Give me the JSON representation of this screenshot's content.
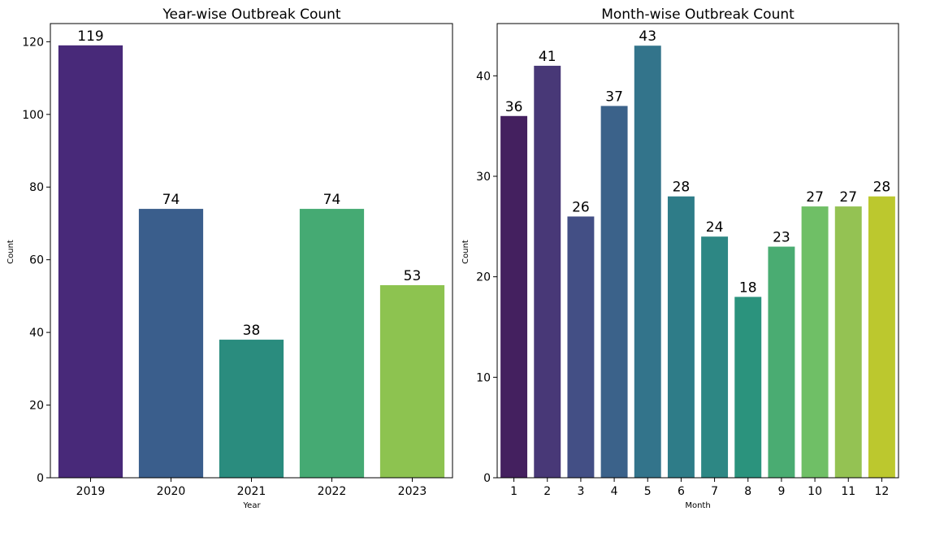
{
  "chart_data": [
    {
      "type": "bar",
      "title": "Year-wise Outbreak Count",
      "xlabel": "Year",
      "ylabel": "Count",
      "categories": [
        "2019",
        "2020",
        "2021",
        "2022",
        "2023"
      ],
      "values": [
        119,
        74,
        38,
        74,
        53
      ],
      "colors": [
        "#482979",
        "#3a5e8c",
        "#2a8c7e",
        "#45aa73",
        "#8dc350"
      ],
      "ylim": [
        0,
        125
      ],
      "yticks": [
        0,
        20,
        40,
        60,
        80,
        100,
        120
      ],
      "grid": false,
      "legend": null
    },
    {
      "type": "bar",
      "title": "Month-wise Outbreak Count",
      "xlabel": "Month",
      "ylabel": "Count",
      "categories": [
        "1",
        "2",
        "3",
        "4",
        "5",
        "6",
        "7",
        "8",
        "9",
        "10",
        "11",
        "12"
      ],
      "values": [
        36,
        41,
        26,
        37,
        43,
        28,
        24,
        18,
        23,
        27,
        27,
        28
      ],
      "colors": [
        "#44205f",
        "#483877",
        "#434f85",
        "#3b628a",
        "#33748b",
        "#2e7c88",
        "#2d8784",
        "#2b937d",
        "#4aac72",
        "#6fbf66",
        "#94c253",
        "#bcc82e"
      ],
      "ylim": [
        0,
        45.2
      ],
      "yticks": [
        0,
        10,
        20,
        30,
        40
      ],
      "grid": false,
      "legend": null
    }
  ]
}
